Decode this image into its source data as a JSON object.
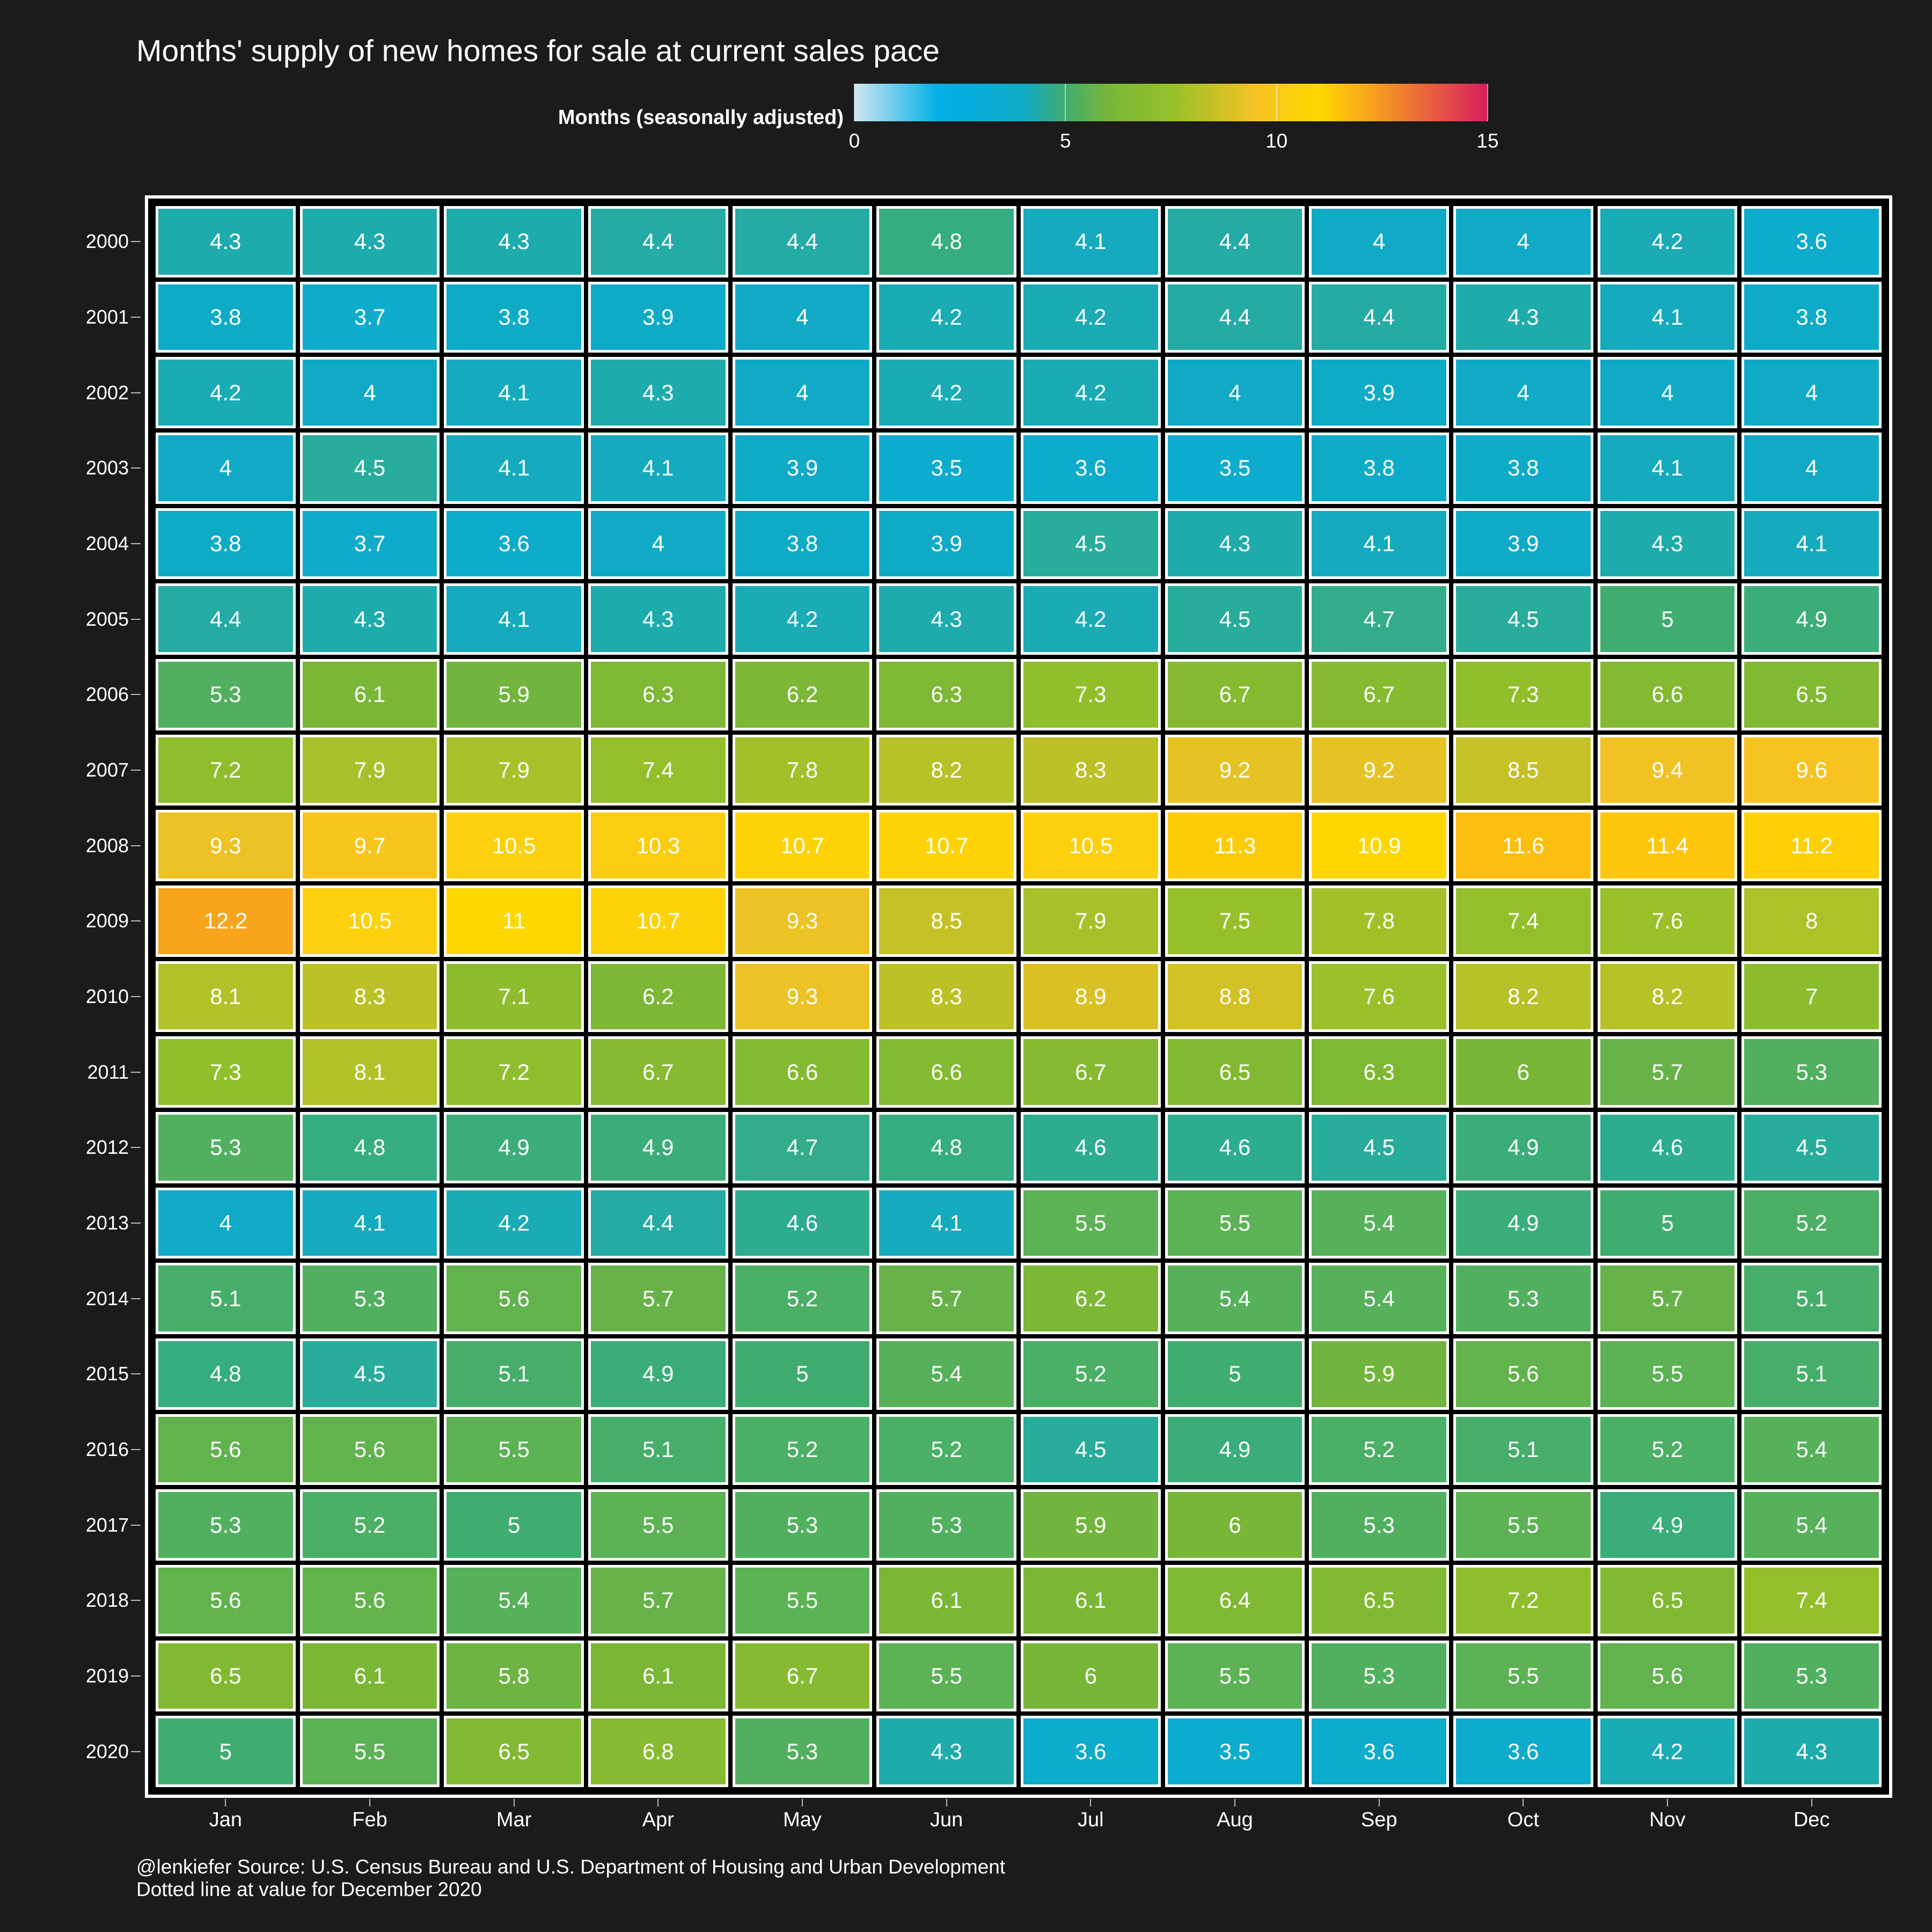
{
  "title": "Months' supply of new homes for sale at current sales pace",
  "legend": {
    "title": "Months (seasonally adjusted)",
    "ticks": [
      "0",
      "5",
      "10",
      "15"
    ],
    "range": [
      0,
      15
    ],
    "gradient_stops": [
      "#cfe6f1",
      "#00b0e6",
      "#17a6b9",
      "#8fbe28",
      "#ffd700",
      "#f5a623",
      "#d61f5e"
    ]
  },
  "caption": {
    "line1": "@lenkiefer Source: U.S. Census Bureau and U.S. Department of Housing and Urban Development",
    "line2": "Dotted line at value for December 2020"
  },
  "chart_data": {
    "type": "heatmap",
    "title": "Months' supply of new homes for sale at current sales pace",
    "xlabel": "",
    "ylabel": "",
    "x_categories": [
      "Jan",
      "Feb",
      "Mar",
      "Apr",
      "May",
      "Jun",
      "Jul",
      "Aug",
      "Sep",
      "Oct",
      "Nov",
      "Dec"
    ],
    "y_categories": [
      "2000",
      "2001",
      "2002",
      "2003",
      "2004",
      "2005",
      "2006",
      "2007",
      "2008",
      "2009",
      "2010",
      "2011",
      "2012",
      "2013",
      "2014",
      "2015",
      "2016",
      "2017",
      "2018",
      "2019",
      "2020"
    ],
    "colorbar_label": "Months (seasonally adjusted)",
    "colorbar_range": [
      0,
      15
    ],
    "values": [
      [
        4.3,
        4.3,
        4.3,
        4.4,
        4.4,
        4.8,
        4.1,
        4.4,
        4,
        4,
        4.2,
        3.6
      ],
      [
        3.8,
        3.7,
        3.8,
        3.9,
        4,
        4.2,
        4.2,
        4.4,
        4.4,
        4.3,
        4.1,
        3.8
      ],
      [
        4.2,
        4,
        4.1,
        4.3,
        4,
        4.2,
        4.2,
        4,
        3.9,
        4,
        4,
        4
      ],
      [
        4,
        4.5,
        4.1,
        4.1,
        3.9,
        3.5,
        3.6,
        3.5,
        3.8,
        3.8,
        4.1,
        4
      ],
      [
        3.8,
        3.7,
        3.6,
        4,
        3.8,
        3.9,
        4.5,
        4.3,
        4.1,
        3.9,
        4.3,
        4.1
      ],
      [
        4.4,
        4.3,
        4.1,
        4.3,
        4.2,
        4.3,
        4.2,
        4.5,
        4.7,
        4.5,
        5,
        4.9
      ],
      [
        5.3,
        6.1,
        5.9,
        6.3,
        6.2,
        6.3,
        7.3,
        6.7,
        6.7,
        7.3,
        6.6,
        6.5
      ],
      [
        7.2,
        7.9,
        7.9,
        7.4,
        7.8,
        8.2,
        8.3,
        9.2,
        9.2,
        8.5,
        9.4,
        9.6
      ],
      [
        9.3,
        9.7,
        10.5,
        10.3,
        10.7,
        10.7,
        10.5,
        11.3,
        10.9,
        11.6,
        11.4,
        11.2
      ],
      [
        12.2,
        10.5,
        11,
        10.7,
        9.3,
        8.5,
        7.9,
        7.5,
        7.8,
        7.4,
        7.6,
        8
      ],
      [
        8.1,
        8.3,
        7.1,
        6.2,
        9.3,
        8.3,
        8.9,
        8.8,
        7.6,
        8.2,
        8.2,
        7
      ],
      [
        7.3,
        8.1,
        7.2,
        6.7,
        6.6,
        6.6,
        6.7,
        6.5,
        6.3,
        6,
        5.7,
        5.3
      ],
      [
        5.3,
        4.8,
        4.9,
        4.9,
        4.7,
        4.8,
        4.6,
        4.6,
        4.5,
        4.9,
        4.6,
        4.5
      ],
      [
        4,
        4.1,
        4.2,
        4.4,
        4.6,
        4.1,
        5.5,
        5.5,
        5.4,
        4.9,
        5,
        5.2
      ],
      [
        5.1,
        5.3,
        5.6,
        5.7,
        5.2,
        5.7,
        6.2,
        5.4,
        5.4,
        5.3,
        5.7,
        5.1
      ],
      [
        4.8,
        4.5,
        5.1,
        4.9,
        5,
        5.4,
        5.2,
        5,
        5.9,
        5.6,
        5.5,
        5.1
      ],
      [
        5.6,
        5.6,
        5.5,
        5.1,
        5.2,
        5.2,
        4.5,
        4.9,
        5.2,
        5.1,
        5.2,
        5.4
      ],
      [
        5.3,
        5.2,
        5,
        5.5,
        5.3,
        5.3,
        5.9,
        6,
        5.3,
        5.5,
        4.9,
        5.4
      ],
      [
        5.6,
        5.6,
        5.4,
        5.7,
        5.5,
        6.1,
        6.1,
        6.4,
        6.5,
        7.2,
        6.5,
        7.4
      ],
      [
        6.5,
        6.1,
        5.8,
        6.1,
        6.7,
        5.5,
        6,
        5.5,
        5.3,
        5.5,
        5.6,
        5.3
      ],
      [
        5,
        5.5,
        6.5,
        6.8,
        5.3,
        4.3,
        3.6,
        3.5,
        3.6,
        3.6,
        4.2,
        4.3
      ]
    ]
  }
}
